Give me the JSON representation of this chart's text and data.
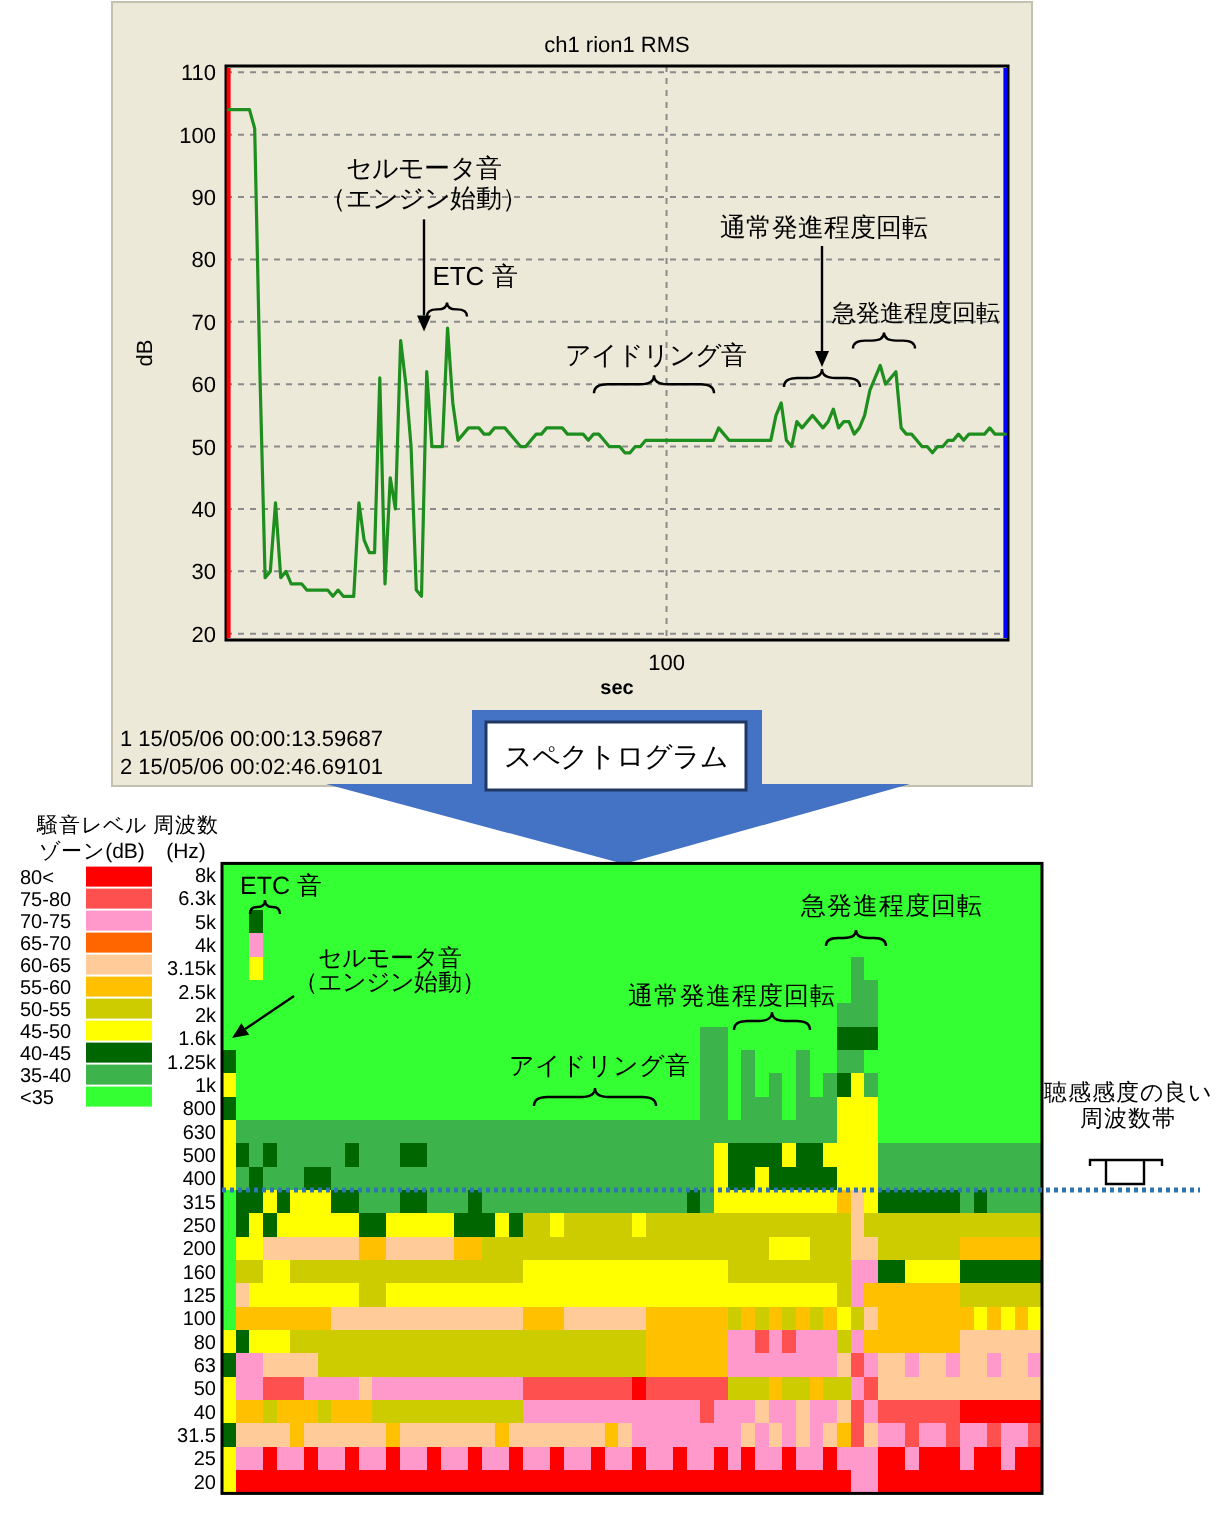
{
  "chart_data": [
    {
      "type": "line",
      "title": "ch1 rion1 RMS",
      "xlabel": "sec",
      "ylabel": "dB",
      "categories": [
        null,
        null,
        null,
        null,
        null,
        null,
        null,
        null,
        null,
        null,
        null,
        null,
        null,
        null,
        null,
        null,
        null,
        null,
        null,
        null,
        null,
        null,
        null,
        null,
        null,
        null,
        null,
        null,
        null,
        null,
        null,
        null,
        null,
        null,
        null,
        null,
        null,
        null,
        null,
        null,
        null,
        null,
        null,
        null,
        null,
        null,
        null,
        null,
        null,
        null,
        null,
        null,
        null,
        null,
        null,
        null,
        null,
        null,
        null,
        null,
        null,
        null,
        null,
        null,
        null,
        null,
        null,
        null,
        null,
        null,
        null,
        null,
        null,
        null,
        null,
        null,
        null,
        null,
        null,
        null,
        null,
        null,
        null,
        null,
        "100",
        null,
        null,
        null,
        null,
        null,
        null,
        null,
        null,
        null,
        null,
        null,
        null,
        null,
        null,
        null,
        null,
        null,
        null,
        null,
        null,
        null,
        null,
        null,
        null,
        null,
        null,
        null,
        null,
        null,
        null,
        null,
        null,
        null,
        null,
        null,
        null,
        null,
        null,
        null,
        null,
        null,
        null,
        null,
        null,
        null,
        null,
        null,
        null,
        null,
        null,
        null,
        null,
        null,
        null,
        null,
        null,
        null,
        null,
        null,
        null,
        null,
        null,
        null,
        null,
        null
      ],
      "series": [
        {
          "color": "#1e8f1e",
          "values": [
            104,
            104,
            104,
            104,
            104,
            101,
            62,
            29,
            30,
            41,
            29,
            30,
            28,
            28,
            28,
            27,
            27,
            27,
            27,
            27,
            26,
            27,
            26,
            26,
            26,
            41,
            35,
            33,
            33,
            61,
            28,
            45,
            40,
            67,
            60,
            50,
            27,
            26,
            62,
            50,
            50,
            50,
            69,
            57,
            51,
            52,
            53,
            53,
            53,
            52,
            52,
            53,
            53,
            53,
            52,
            51,
            50,
            50,
            51,
            52,
            52,
            53,
            53,
            53,
            53,
            52,
            52,
            52,
            52,
            51,
            52,
            52,
            51,
            50,
            50,
            50,
            49,
            49,
            50,
            50,
            51,
            51,
            51,
            51,
            51,
            51,
            51,
            51,
            51,
            51,
            51,
            51,
            51,
            51,
            53,
            52,
            51,
            51,
            51,
            51,
            51,
            51,
            51,
            51,
            51,
            55,
            57,
            51,
            50,
            54,
            53,
            54,
            55,
            54,
            53,
            54,
            56,
            53,
            54,
            54,
            52,
            53,
            55,
            59,
            61,
            63,
            60,
            61,
            62,
            53,
            52,
            52,
            51,
            50,
            50,
            49,
            50,
            50,
            51,
            51,
            52,
            51,
            52,
            52,
            52,
            52,
            53,
            52,
            52,
            52
          ]
        }
      ],
      "ylim": [
        19,
        111
      ],
      "yticks": [
        20,
        30,
        40,
        50,
        60,
        70,
        80,
        90,
        100,
        110
      ],
      "grid": true,
      "annotations": [
        "セルモータ音（エンジン始動）",
        "ETC 音",
        "アイドリング音",
        "通常発進程度回転",
        "急発進程度回転",
        "1 15/05/06 00:00:13.59687",
        "2 15/05/06 00:02:46.69101"
      ]
    },
    {
      "type": "heatmap",
      "title": "スペクトログラム",
      "ylabel": "周波数\n(Hz)",
      "clabel": "騒音レベルゾーン(dB)",
      "categories": [
        null,
        null,
        null,
        null,
        null,
        null,
        null,
        null,
        null,
        null,
        null,
        null,
        null,
        null,
        null,
        null,
        null,
        null,
        null,
        null,
        null,
        null,
        null,
        null,
        null,
        null,
        null,
        null,
        null,
        null,
        null,
        null,
        null,
        null,
        null,
        null,
        null,
        null,
        null,
        null,
        null,
        null,
        null,
        null,
        null,
        null,
        null,
        null,
        null,
        null,
        null,
        null,
        null,
        null,
        null,
        null,
        null,
        null,
        null,
        null
      ],
      "y_categories": [
        "8k",
        "6.3k",
        "5k",
        "4k",
        "3.15k",
        "2.5k",
        "2k",
        "1.6k",
        "1.25k",
        "1k",
        "800",
        "630",
        "500",
        "400",
        "315",
        "250",
        "200",
        "160",
        "125",
        "100",
        "80",
        "63",
        "50",
        "40",
        "31.5",
        "25",
        "20"
      ],
      "cells": [
        [
          32.5,
          32.5,
          32.5,
          32.5,
          32.5,
          32.5,
          32.5,
          32.5,
          32.5,
          32.5,
          32.5,
          32.5,
          32.5,
          32.5,
          32.5,
          32.5,
          32.5,
          32.5,
          32.5,
          32.5,
          32.5,
          32.5,
          32.5,
          32.5,
          32.5,
          32.5,
          32.5,
          32.5,
          32.5,
          32.5,
          32.5,
          32.5,
          32.5,
          32.5,
          32.5,
          32.5,
          32.5,
          32.5,
          32.5,
          32.5,
          32.5,
          32.5,
          32.5,
          32.5,
          32.5,
          32.5,
          32.5,
          32.5,
          32.5,
          32.5,
          32.5,
          32.5,
          32.5,
          32.5,
          32.5,
          32.5,
          32.5,
          32.5,
          32.5,
          32.5
        ],
        [
          32.5,
          32.5,
          32.5,
          32.5,
          32.5,
          32.5,
          32.5,
          32.5,
          32.5,
          32.5,
          32.5,
          32.5,
          32.5,
          32.5,
          32.5,
          32.5,
          32.5,
          32.5,
          32.5,
          32.5,
          32.5,
          32.5,
          32.5,
          32.5,
          32.5,
          32.5,
          32.5,
          32.5,
          32.5,
          32.5,
          32.5,
          32.5,
          32.5,
          32.5,
          32.5,
          32.5,
          32.5,
          32.5,
          32.5,
          32.5,
          32.5,
          32.5,
          32.5,
          32.5,
          32.5,
          32.5,
          32.5,
          32.5,
          32.5,
          32.5,
          32.5,
          32.5,
          32.5,
          32.5,
          32.5,
          32.5,
          32.5,
          32.5,
          32.5,
          32.5
        ],
        [
          32.5,
          32.5,
          42.5,
          32.5,
          32.5,
          32.5,
          32.5,
          32.5,
          32.5,
          32.5,
          32.5,
          32.5,
          32.5,
          32.5,
          32.5,
          32.5,
          32.5,
          32.5,
          32.5,
          32.5,
          32.5,
          32.5,
          32.5,
          32.5,
          32.5,
          32.5,
          32.5,
          32.5,
          32.5,
          32.5,
          32.5,
          32.5,
          32.5,
          32.5,
          32.5,
          32.5,
          32.5,
          32.5,
          32.5,
          32.5,
          32.5,
          32.5,
          32.5,
          32.5,
          32.5,
          32.5,
          32.5,
          32.5,
          32.5,
          32.5,
          32.5,
          32.5,
          32.5,
          32.5,
          32.5,
          32.5,
          32.5,
          32.5,
          32.5,
          32.5
        ],
        [
          32.5,
          32.5,
          72.5,
          32.5,
          32.5,
          32.5,
          32.5,
          32.5,
          32.5,
          32.5,
          32.5,
          32.5,
          32.5,
          32.5,
          32.5,
          32.5,
          32.5,
          32.5,
          32.5,
          32.5,
          32.5,
          32.5,
          32.5,
          32.5,
          32.5,
          32.5,
          32.5,
          32.5,
          32.5,
          32.5,
          32.5,
          32.5,
          32.5,
          32.5,
          32.5,
          32.5,
          32.5,
          32.5,
          32.5,
          32.5,
          32.5,
          32.5,
          32.5,
          32.5,
          32.5,
          32.5,
          32.5,
          32.5,
          32.5,
          32.5,
          32.5,
          32.5,
          32.5,
          32.5,
          32.5,
          32.5,
          32.5,
          32.5,
          32.5,
          32.5
        ],
        [
          32.5,
          32.5,
          47.5,
          32.5,
          32.5,
          32.5,
          32.5,
          32.5,
          32.5,
          32.5,
          32.5,
          32.5,
          32.5,
          32.5,
          32.5,
          32.5,
          32.5,
          32.5,
          32.5,
          32.5,
          32.5,
          32.5,
          32.5,
          32.5,
          32.5,
          32.5,
          32.5,
          32.5,
          32.5,
          32.5,
          32.5,
          32.5,
          32.5,
          32.5,
          32.5,
          32.5,
          32.5,
          32.5,
          32.5,
          32.5,
          32.5,
          32.5,
          32.5,
          32.5,
          32.5,
          32.5,
          37.5,
          32.5,
          32.5,
          32.5,
          32.5,
          32.5,
          32.5,
          32.5,
          32.5,
          32.5,
          32.5,
          32.5,
          32.5,
          32.5
        ],
        [
          32.5,
          32.5,
          32.5,
          32.5,
          32.5,
          32.5,
          32.5,
          32.5,
          32.5,
          32.5,
          32.5,
          32.5,
          32.5,
          32.5,
          32.5,
          32.5,
          32.5,
          32.5,
          32.5,
          32.5,
          32.5,
          32.5,
          32.5,
          32.5,
          32.5,
          32.5,
          32.5,
          32.5,
          32.5,
          32.5,
          32.5,
          32.5,
          32.5,
          32.5,
          32.5,
          32.5,
          32.5,
          32.5,
          32.5,
          32.5,
          32.5,
          32.5,
          32.5,
          32.5,
          32.5,
          32.5,
          37.5,
          37.5,
          32.5,
          32.5,
          32.5,
          32.5,
          32.5,
          32.5,
          32.5,
          32.5,
          32.5,
          32.5,
          32.5,
          32.5
        ],
        [
          32.5,
          32.5,
          32.5,
          32.5,
          32.5,
          32.5,
          32.5,
          32.5,
          32.5,
          32.5,
          32.5,
          32.5,
          32.5,
          32.5,
          32.5,
          32.5,
          32.5,
          32.5,
          32.5,
          32.5,
          32.5,
          32.5,
          32.5,
          32.5,
          32.5,
          32.5,
          32.5,
          32.5,
          32.5,
          32.5,
          32.5,
          32.5,
          32.5,
          32.5,
          32.5,
          32.5,
          32.5,
          32.5,
          32.5,
          32.5,
          32.5,
          32.5,
          32.5,
          32.5,
          32.5,
          37.5,
          37.5,
          37.5,
          32.5,
          32.5,
          32.5,
          32.5,
          32.5,
          32.5,
          32.5,
          32.5,
          32.5,
          32.5,
          32.5,
          32.5
        ],
        [
          32.5,
          32.5,
          32.5,
          32.5,
          32.5,
          32.5,
          32.5,
          32.5,
          32.5,
          32.5,
          32.5,
          32.5,
          32.5,
          32.5,
          32.5,
          32.5,
          32.5,
          32.5,
          32.5,
          32.5,
          32.5,
          32.5,
          32.5,
          32.5,
          32.5,
          32.5,
          32.5,
          32.5,
          32.5,
          32.5,
          32.5,
          32.5,
          32.5,
          32.5,
          32.5,
          37.5,
          37.5,
          32.5,
          32.5,
          32.5,
          32.5,
          32.5,
          32.5,
          32.5,
          32.5,
          42.5,
          42.5,
          42.5,
          32.5,
          32.5,
          32.5,
          32.5,
          32.5,
          32.5,
          32.5,
          32.5,
          32.5,
          32.5,
          32.5,
          32.5
        ],
        [
          42.5,
          32.5,
          32.5,
          32.5,
          32.5,
          32.5,
          32.5,
          32.5,
          32.5,
          32.5,
          32.5,
          32.5,
          32.5,
          32.5,
          32.5,
          32.5,
          32.5,
          32.5,
          32.5,
          32.5,
          32.5,
          32.5,
          32.5,
          32.5,
          32.5,
          32.5,
          32.5,
          32.5,
          32.5,
          32.5,
          32.5,
          32.5,
          32.5,
          32.5,
          32.5,
          37.5,
          37.5,
          32.5,
          37.5,
          32.5,
          32.5,
          32.5,
          37.5,
          32.5,
          32.5,
          37.5,
          37.5,
          32.5,
          32.5,
          32.5,
          32.5,
          32.5,
          32.5,
          32.5,
          32.5,
          32.5,
          32.5,
          32.5,
          32.5,
          32.5
        ],
        [
          47.5,
          32.5,
          32.5,
          32.5,
          32.5,
          32.5,
          32.5,
          32.5,
          32.5,
          32.5,
          32.5,
          32.5,
          32.5,
          32.5,
          32.5,
          32.5,
          32.5,
          32.5,
          32.5,
          32.5,
          32.5,
          32.5,
          32.5,
          32.5,
          32.5,
          32.5,
          32.5,
          32.5,
          32.5,
          32.5,
          32.5,
          32.5,
          32.5,
          32.5,
          32.5,
          37.5,
          37.5,
          32.5,
          37.5,
          32.5,
          37.5,
          32.5,
          37.5,
          32.5,
          37.5,
          42.5,
          47.5,
          37.5,
          32.5,
          32.5,
          32.5,
          32.5,
          32.5,
          32.5,
          32.5,
          32.5,
          32.5,
          32.5,
          32.5,
          32.5
        ],
        [
          42.5,
          32.5,
          32.5,
          32.5,
          32.5,
          32.5,
          32.5,
          32.5,
          32.5,
          32.5,
          32.5,
          32.5,
          32.5,
          32.5,
          32.5,
          32.5,
          32.5,
          32.5,
          32.5,
          32.5,
          32.5,
          32.5,
          32.5,
          32.5,
          32.5,
          32.5,
          32.5,
          32.5,
          32.5,
          32.5,
          32.5,
          32.5,
          32.5,
          32.5,
          32.5,
          37.5,
          37.5,
          32.5,
          37.5,
          37.5,
          37.5,
          32.5,
          37.5,
          37.5,
          37.5,
          47.5,
          47.5,
          47.5,
          32.5,
          32.5,
          32.5,
          32.5,
          32.5,
          32.5,
          32.5,
          32.5,
          32.5,
          32.5,
          32.5,
          32.5
        ],
        [
          47.5,
          37.5,
          37.5,
          37.5,
          37.5,
          37.5,
          37.5,
          37.5,
          37.5,
          37.5,
          37.5,
          37.5,
          37.5,
          37.5,
          37.5,
          37.5,
          37.5,
          37.5,
          37.5,
          37.5,
          37.5,
          37.5,
          37.5,
          37.5,
          37.5,
          37.5,
          37.5,
          37.5,
          37.5,
          37.5,
          37.5,
          37.5,
          37.5,
          37.5,
          37.5,
          37.5,
          37.5,
          37.5,
          37.5,
          37.5,
          37.5,
          37.5,
          37.5,
          37.5,
          37.5,
          47.5,
          47.5,
          47.5,
          32.5,
          32.5,
          32.5,
          32.5,
          32.5,
          32.5,
          32.5,
          32.5,
          32.5,
          32.5,
          32.5,
          32.5
        ],
        [
          47.5,
          42.5,
          37.5,
          42.5,
          37.5,
          37.5,
          37.5,
          37.5,
          37.5,
          42.5,
          37.5,
          37.5,
          37.5,
          42.5,
          42.5,
          37.5,
          37.5,
          37.5,
          37.5,
          37.5,
          37.5,
          37.5,
          37.5,
          37.5,
          37.5,
          37.5,
          37.5,
          37.5,
          37.5,
          37.5,
          37.5,
          37.5,
          37.5,
          37.5,
          37.5,
          37.5,
          47.5,
          42.5,
          42.5,
          42.5,
          42.5,
          47.5,
          42.5,
          42.5,
          47.5,
          47.5,
          47.5,
          47.5,
          37.5,
          37.5,
          37.5,
          37.5,
          37.5,
          37.5,
          37.5,
          37.5,
          37.5,
          37.5,
          37.5,
          37.5
        ],
        [
          47.5,
          37.5,
          42.5,
          37.5,
          37.5,
          37.5,
          42.5,
          42.5,
          37.5,
          37.5,
          37.5,
          37.5,
          37.5,
          37.5,
          37.5,
          37.5,
          37.5,
          37.5,
          37.5,
          37.5,
          37.5,
          37.5,
          37.5,
          37.5,
          37.5,
          37.5,
          37.5,
          37.5,
          37.5,
          37.5,
          37.5,
          37.5,
          37.5,
          37.5,
          37.5,
          37.5,
          47.5,
          42.5,
          42.5,
          47.5,
          42.5,
          42.5,
          42.5,
          42.5,
          42.5,
          47.5,
          47.5,
          47.5,
          37.5,
          37.5,
          37.5,
          37.5,
          37.5,
          37.5,
          37.5,
          37.5,
          37.5,
          37.5,
          37.5,
          37.5
        ],
        [
          32.5,
          42.5,
          42.5,
          47.5,
          42.5,
          47.5,
          47.5,
          47.5,
          42.5,
          42.5,
          37.5,
          37.5,
          37.5,
          42.5,
          42.5,
          37.5,
          37.5,
          37.5,
          42.5,
          37.5,
          37.5,
          37.5,
          37.5,
          37.5,
          37.5,
          37.5,
          37.5,
          37.5,
          37.5,
          37.5,
          37.5,
          37.5,
          37.5,
          37.5,
          42.5,
          37.5,
          47.5,
          47.5,
          47.5,
          47.5,
          47.5,
          47.5,
          47.5,
          47.5,
          47.5,
          57.5,
          62.5,
          47.5,
          42.5,
          42.5,
          42.5,
          42.5,
          42.5,
          42.5,
          37.5,
          42.5,
          37.5,
          37.5,
          37.5,
          37.5
        ],
        [
          32.5,
          42.5,
          47.5,
          42.5,
          47.5,
          47.5,
          47.5,
          47.5,
          47.5,
          47.5,
          42.5,
          42.5,
          47.5,
          47.5,
          47.5,
          47.5,
          47.5,
          42.5,
          42.5,
          42.5,
          47.5,
          42.5,
          52.5,
          52.5,
          47.5,
          52.5,
          52.5,
          52.5,
          52.5,
          52.5,
          47.5,
          52.5,
          52.5,
          52.5,
          52.5,
          52.5,
          52.5,
          52.5,
          52.5,
          52.5,
          52.5,
          52.5,
          52.5,
          52.5,
          52.5,
          52.5,
          62.5,
          52.5,
          52.5,
          52.5,
          52.5,
          52.5,
          52.5,
          52.5,
          52.5,
          52.5,
          52.5,
          52.5,
          52.5,
          52.5
        ],
        [
          32.5,
          47.5,
          47.5,
          62.5,
          62.5,
          62.5,
          62.5,
          62.5,
          62.5,
          62.5,
          57.5,
          57.5,
          62.5,
          62.5,
          62.5,
          62.5,
          62.5,
          57.5,
          57.5,
          52.5,
          52.5,
          52.5,
          52.5,
          52.5,
          52.5,
          52.5,
          52.5,
          52.5,
          52.5,
          52.5,
          52.5,
          52.5,
          52.5,
          52.5,
          52.5,
          52.5,
          52.5,
          52.5,
          52.5,
          52.5,
          47.5,
          47.5,
          47.5,
          52.5,
          52.5,
          52.5,
          62.5,
          62.5,
          52.5,
          52.5,
          52.5,
          52.5,
          52.5,
          52.5,
          57.5,
          57.5,
          57.5,
          57.5,
          57.5,
          57.5
        ],
        [
          32.5,
          52.5,
          52.5,
          47.5,
          47.5,
          52.5,
          52.5,
          52.5,
          52.5,
          52.5,
          52.5,
          52.5,
          52.5,
          52.5,
          52.5,
          52.5,
          52.5,
          52.5,
          52.5,
          52.5,
          52.5,
          52.5,
          47.5,
          47.5,
          47.5,
          47.5,
          47.5,
          47.5,
          47.5,
          47.5,
          47.5,
          47.5,
          47.5,
          47.5,
          47.5,
          47.5,
          47.5,
          52.5,
          52.5,
          52.5,
          52.5,
          52.5,
          52.5,
          52.5,
          52.5,
          52.5,
          72.5,
          72.5,
          42.5,
          42.5,
          47.5,
          47.5,
          47.5,
          47.5,
          42.5,
          42.5,
          42.5,
          42.5,
          42.5,
          42.5
        ],
        [
          32.5,
          62.5,
          47.5,
          47.5,
          47.5,
          47.5,
          47.5,
          47.5,
          47.5,
          47.5,
          52.5,
          52.5,
          47.5,
          47.5,
          47.5,
          47.5,
          47.5,
          47.5,
          47.5,
          47.5,
          47.5,
          47.5,
          47.5,
          47.5,
          47.5,
          47.5,
          47.5,
          47.5,
          47.5,
          47.5,
          47.5,
          47.5,
          47.5,
          47.5,
          47.5,
          47.5,
          47.5,
          47.5,
          47.5,
          47.5,
          47.5,
          47.5,
          47.5,
          47.5,
          47.5,
          52.5,
          72.5,
          57.5,
          57.5,
          57.5,
          57.5,
          57.5,
          57.5,
          57.5,
          52.5,
          52.5,
          52.5,
          52.5,
          52.5,
          52.5
        ],
        [
          32.5,
          57.5,
          57.5,
          57.5,
          57.5,
          57.5,
          57.5,
          57.5,
          62.5,
          62.5,
          62.5,
          62.5,
          62.5,
          62.5,
          62.5,
          62.5,
          62.5,
          62.5,
          62.5,
          62.5,
          62.5,
          62.5,
          57.5,
          57.5,
          57.5,
          62.5,
          62.5,
          62.5,
          62.5,
          62.5,
          62.5,
          57.5,
          57.5,
          57.5,
          57.5,
          57.5,
          57.5,
          52.5,
          57.5,
          52.5,
          57.5,
          52.5,
          57.5,
          52.5,
          57.5,
          47.5,
          52.5,
          62.5,
          57.5,
          57.5,
          57.5,
          57.5,
          57.5,
          57.5,
          57.5,
          47.5,
          57.5,
          47.5,
          57.5,
          47.5
        ],
        [
          47.5,
          42.5,
          47.5,
          47.5,
          47.5,
          52.5,
          52.5,
          52.5,
          52.5,
          52.5,
          52.5,
          52.5,
          52.5,
          52.5,
          52.5,
          52.5,
          52.5,
          52.5,
          52.5,
          52.5,
          52.5,
          52.5,
          52.5,
          52.5,
          52.5,
          52.5,
          52.5,
          52.5,
          52.5,
          52.5,
          52.5,
          57.5,
          57.5,
          57.5,
          57.5,
          57.5,
          57.5,
          72.5,
          72.5,
          77.5,
          72.5,
          77.5,
          72.5,
          72.5,
          72.5,
          52.5,
          72.5,
          57.5,
          57.5,
          57.5,
          57.5,
          57.5,
          57.5,
          57.5,
          62.5,
          62.5,
          62.5,
          62.5,
          62.5,
          62.5
        ],
        [
          42.5,
          72.5,
          72.5,
          62.5,
          62.5,
          62.5,
          62.5,
          52.5,
          52.5,
          52.5,
          52.5,
          52.5,
          52.5,
          52.5,
          52.5,
          52.5,
          52.5,
          52.5,
          52.5,
          52.5,
          52.5,
          52.5,
          52.5,
          52.5,
          52.5,
          52.5,
          52.5,
          52.5,
          52.5,
          52.5,
          52.5,
          57.5,
          57.5,
          57.5,
          57.5,
          57.5,
          57.5,
          72.5,
          72.5,
          72.5,
          72.5,
          72.5,
          72.5,
          72.5,
          72.5,
          62.5,
          77.5,
          72.5,
          62.5,
          62.5,
          72.5,
          62.5,
          62.5,
          72.5,
          62.5,
          62.5,
          72.5,
          62.5,
          62.5,
          72.5
        ],
        [
          47.5,
          72.5,
          72.5,
          77.5,
          77.5,
          77.5,
          72.5,
          72.5,
          72.5,
          72.5,
          62.5,
          72.5,
          72.5,
          72.5,
          72.5,
          72.5,
          72.5,
          72.5,
          72.5,
          72.5,
          72.5,
          72.5,
          77.5,
          77.5,
          77.5,
          77.5,
          77.5,
          77.5,
          77.5,
          77.5,
          82.5,
          77.5,
          77.5,
          77.5,
          77.5,
          77.5,
          77.5,
          52.5,
          52.5,
          52.5,
          57.5,
          52.5,
          52.5,
          57.5,
          52.5,
          52.5,
          72.5,
          77.5,
          62.5,
          62.5,
          62.5,
          62.5,
          62.5,
          62.5,
          62.5,
          62.5,
          62.5,
          62.5,
          62.5,
          62.5
        ],
        [
          47.5,
          57.5,
          57.5,
          52.5,
          57.5,
          57.5,
          57.5,
          52.5,
          57.5,
          57.5,
          57.5,
          52.5,
          52.5,
          52.5,
          52.5,
          52.5,
          52.5,
          52.5,
          52.5,
          52.5,
          52.5,
          52.5,
          72.5,
          72.5,
          72.5,
          72.5,
          72.5,
          72.5,
          72.5,
          72.5,
          72.5,
          72.5,
          72.5,
          72.5,
          72.5,
          77.5,
          72.5,
          72.5,
          72.5,
          62.5,
          72.5,
          72.5,
          62.5,
          72.5,
          72.5,
          62.5,
          77.5,
          72.5,
          77.5,
          77.5,
          77.5,
          77.5,
          77.5,
          77.5,
          82.5,
          82.5,
          82.5,
          82.5,
          82.5,
          82.5
        ],
        [
          42.5,
          62.5,
          62.5,
          62.5,
          62.5,
          57.5,
          62.5,
          62.5,
          62.5,
          62.5,
          62.5,
          62.5,
          57.5,
          62.5,
          62.5,
          62.5,
          62.5,
          62.5,
          62.5,
          62.5,
          57.5,
          62.5,
          62.5,
          62.5,
          62.5,
          62.5,
          62.5,
          62.5,
          57.5,
          62.5,
          72.5,
          72.5,
          72.5,
          72.5,
          72.5,
          72.5,
          72.5,
          72.5,
          62.5,
          72.5,
          62.5,
          72.5,
          62.5,
          72.5,
          62.5,
          57.5,
          77.5,
          62.5,
          72.5,
          72.5,
          77.5,
          72.5,
          72.5,
          77.5,
          72.5,
          72.5,
          77.5,
          72.5,
          72.5,
          77.5
        ],
        [
          47.5,
          72.5,
          72.5,
          82.5,
          72.5,
          72.5,
          82.5,
          72.5,
          72.5,
          82.5,
          72.5,
          72.5,
          82.5,
          72.5,
          72.5,
          82.5,
          72.5,
          72.5,
          82.5,
          72.5,
          72.5,
          82.5,
          72.5,
          72.5,
          82.5,
          72.5,
          72.5,
          82.5,
          72.5,
          72.5,
          82.5,
          72.5,
          72.5,
          82.5,
          72.5,
          72.5,
          82.5,
          72.5,
          82.5,
          72.5,
          72.5,
          82.5,
          72.5,
          72.5,
          82.5,
          72.5,
          72.5,
          72.5,
          82.5,
          82.5,
          72.5,
          82.5,
          82.5,
          82.5,
          72.5,
          82.5,
          82.5,
          72.5,
          82.5,
          82.5
        ],
        [
          47.5,
          82.5,
          82.5,
          82.5,
          82.5,
          82.5,
          82.5,
          82.5,
          82.5,
          82.5,
          82.5,
          82.5,
          82.5,
          82.5,
          82.5,
          82.5,
          82.5,
          82.5,
          82.5,
          82.5,
          82.5,
          82.5,
          82.5,
          82.5,
          82.5,
          82.5,
          82.5,
          82.5,
          82.5,
          82.5,
          82.5,
          82.5,
          82.5,
          82.5,
          82.5,
          82.5,
          82.5,
          82.5,
          82.5,
          82.5,
          82.5,
          82.5,
          82.5,
          82.5,
          82.5,
          82.5,
          72.5,
          72.5,
          82.5,
          82.5,
          82.5,
          82.5,
          82.5,
          82.5,
          82.5,
          82.5,
          82.5,
          82.5,
          82.5,
          82.5
        ]
      ],
      "clim": [
        30,
        85
      ],
      "cticks": [
        {
          "value": 32.5,
          "label": "<35"
        },
        {
          "value": 37.5,
          "label": "35-40"
        },
        {
          "value": 42.5,
          "label": "40-45"
        },
        {
          "value": 47.5,
          "label": "45-50"
        },
        {
          "value": 52.5,
          "label": "50-55"
        },
        {
          "value": 57.5,
          "label": "55-60"
        },
        {
          "value": 62.5,
          "label": "60-65"
        },
        {
          "value": 67.5,
          "label": "65-70"
        },
        {
          "value": 72.5,
          "label": "70-75"
        },
        {
          "value": 77.5,
          "label": "75-80"
        },
        {
          "value": 82.5,
          "label": "80<"
        }
      ],
      "colors": [
        "#33ff33",
        "#3cb44b",
        "#006600",
        "#ffff00",
        "#cccc00",
        "#ffc000",
        "#ffcc99",
        "#ff6600",
        "#ff99cc",
        "#ff5050",
        "#ff0000"
      ],
      "ref_lines": [
        {
          "axis": "y",
          "value": "400",
          "label": "聴感感度の良い周波数帯",
          "color": "#2e75b6",
          "line_style": "dotted"
        }
      ],
      "annotations": [
        "ETC 音",
        "セルモータ音（エンジン始動）",
        "アイドリング音",
        "通常発進程度回転",
        "急発進程度回転"
      ]
    }
  ]
}
